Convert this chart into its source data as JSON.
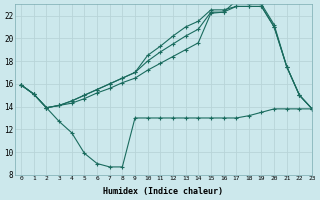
{
  "xlabel": "Humidex (Indice chaleur)",
  "background_color": "#cce8ec",
  "grid_color": "#b8d4d8",
  "line_color": "#1a6b5e",
  "xlim": [
    -0.5,
    23
  ],
  "ylim": [
    8,
    23
  ],
  "yticks": [
    8,
    10,
    12,
    14,
    16,
    18,
    20,
    22
  ],
  "xticks": [
    0,
    1,
    2,
    3,
    4,
    5,
    6,
    7,
    8,
    9,
    10,
    11,
    12,
    13,
    14,
    15,
    16,
    17,
    18,
    19,
    20,
    21,
    22,
    23
  ],
  "series1_x": [
    0,
    1,
    2,
    3,
    4,
    5,
    6,
    7,
    8,
    9,
    10,
    11,
    12,
    13,
    14,
    15,
    16,
    17,
    18,
    19,
    20,
    21,
    22,
    23
  ],
  "series1_y": [
    15.9,
    15.1,
    13.9,
    12.7,
    11.7,
    9.9,
    9.0,
    8.7,
    8.7,
    13.0,
    13.0,
    13.0,
    13.0,
    13.0,
    13.0,
    13.0,
    13.0,
    13.0,
    13.2,
    13.5,
    13.8,
    13.8,
    13.8,
    13.8
  ],
  "series2_x": [
    0,
    1,
    2,
    3,
    4,
    5,
    6,
    7,
    8,
    9,
    10,
    11,
    12,
    13,
    14,
    15,
    16,
    17,
    18,
    19,
    20,
    21,
    22,
    23
  ],
  "series2_y": [
    15.9,
    15.1,
    13.9,
    14.1,
    14.5,
    15.0,
    15.5,
    16.0,
    16.5,
    17.0,
    18.5,
    19.3,
    20.2,
    21.0,
    21.5,
    22.5,
    22.5,
    22.8,
    22.8,
    22.8,
    21.0,
    17.5,
    15.0,
    13.8
  ],
  "series3_x": [
    0,
    1,
    2,
    3,
    4,
    5,
    6,
    7,
    8,
    9,
    10,
    11,
    12,
    13,
    14,
    15,
    16,
    17,
    18,
    19,
    20,
    21,
    22,
    23
  ],
  "series3_y": [
    15.9,
    15.1,
    13.9,
    14.1,
    14.5,
    15.0,
    15.5,
    16.0,
    16.5,
    17.0,
    18.0,
    18.8,
    19.5,
    20.2,
    20.8,
    22.3,
    22.3,
    23.3,
    23.0,
    23.0,
    21.2,
    17.5,
    15.0,
    13.8
  ],
  "series4_x": [
    0,
    1,
    2,
    3,
    4,
    5,
    6,
    7,
    8,
    9,
    10,
    11,
    12,
    13,
    14,
    15,
    16,
    17,
    18,
    19,
    20,
    21,
    22,
    23
  ],
  "series4_y": [
    15.9,
    15.1,
    13.9,
    14.1,
    14.3,
    14.7,
    15.2,
    15.6,
    16.1,
    16.5,
    17.2,
    17.8,
    18.4,
    19.0,
    19.6,
    22.2,
    22.3,
    22.8,
    22.8,
    22.8,
    21.0,
    17.5,
    15.0,
    13.8
  ]
}
